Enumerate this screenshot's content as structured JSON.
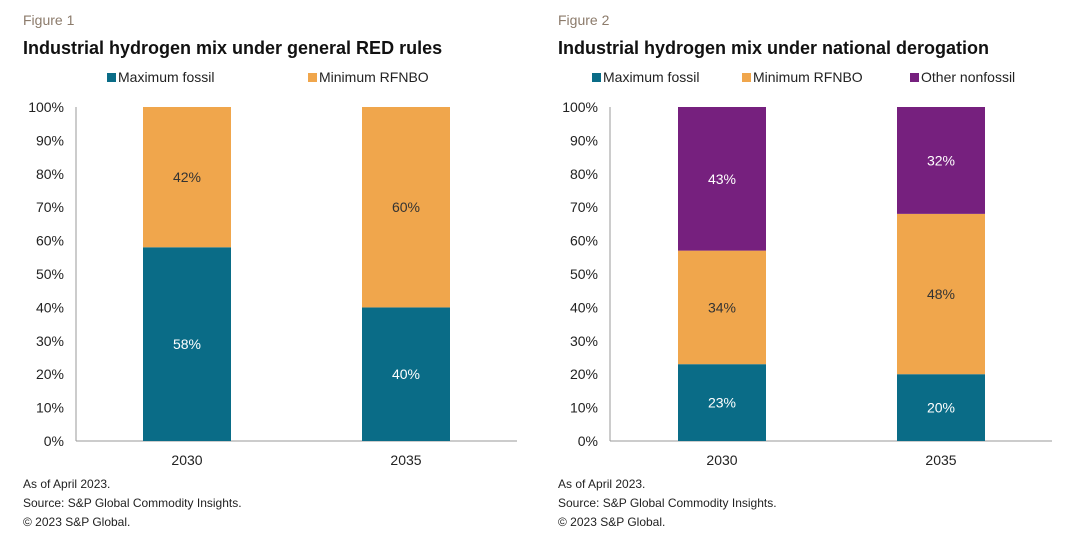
{
  "chart_data": [
    {
      "type": "bar",
      "stacked": true,
      "figure_label": "Figure 1",
      "title": "Industrial hydrogen mix under general RED rules",
      "categories": [
        "2030",
        "2035"
      ],
      "series": [
        {
          "name": "Maximum fossil",
          "color": "#0a6c87",
          "label_color": "#ffffff",
          "values": [
            58,
            40
          ]
        },
        {
          "name": "Minimum RFNBO",
          "color": "#f0a64c",
          "label_color": "#333333",
          "values": [
            42,
            60
          ]
        }
      ],
      "ylim": [
        0,
        100
      ],
      "yticks": [
        "0%",
        "10%",
        "20%",
        "30%",
        "40%",
        "50%",
        "60%",
        "70%",
        "80%",
        "90%",
        "100%"
      ],
      "xlabel": "",
      "ylabel": "",
      "grid": false,
      "legend": "top",
      "notes": [
        "As of April 2023.",
        "Source: S&P Global Commodity Insights.",
        "© 2023 S&P Global."
      ]
    },
    {
      "type": "bar",
      "stacked": true,
      "figure_label": "Figure 2",
      "title": "Industrial hydrogen mix under national derogation",
      "categories": [
        "2030",
        "2035"
      ],
      "series": [
        {
          "name": "Maximum fossil",
          "color": "#0a6c87",
          "label_color": "#ffffff",
          "values": [
            23,
            20
          ]
        },
        {
          "name": "Minimum RFNBO",
          "color": "#f0a64c",
          "label_color": "#333333",
          "values": [
            34,
            48
          ]
        },
        {
          "name": "Other nonfossil",
          "color": "#76207e",
          "label_color": "#ffffff",
          "values": [
            43,
            32
          ]
        }
      ],
      "ylim": [
        0,
        100
      ],
      "yticks": [
        "0%",
        "10%",
        "20%",
        "30%",
        "40%",
        "50%",
        "60%",
        "70%",
        "80%",
        "90%",
        "100%"
      ],
      "xlabel": "",
      "ylabel": "",
      "grid": false,
      "legend": "top",
      "notes": [
        "As of April 2023.",
        "Source: S&P Global Commodity Insights.",
        "© 2023 S&P Global."
      ]
    }
  ]
}
